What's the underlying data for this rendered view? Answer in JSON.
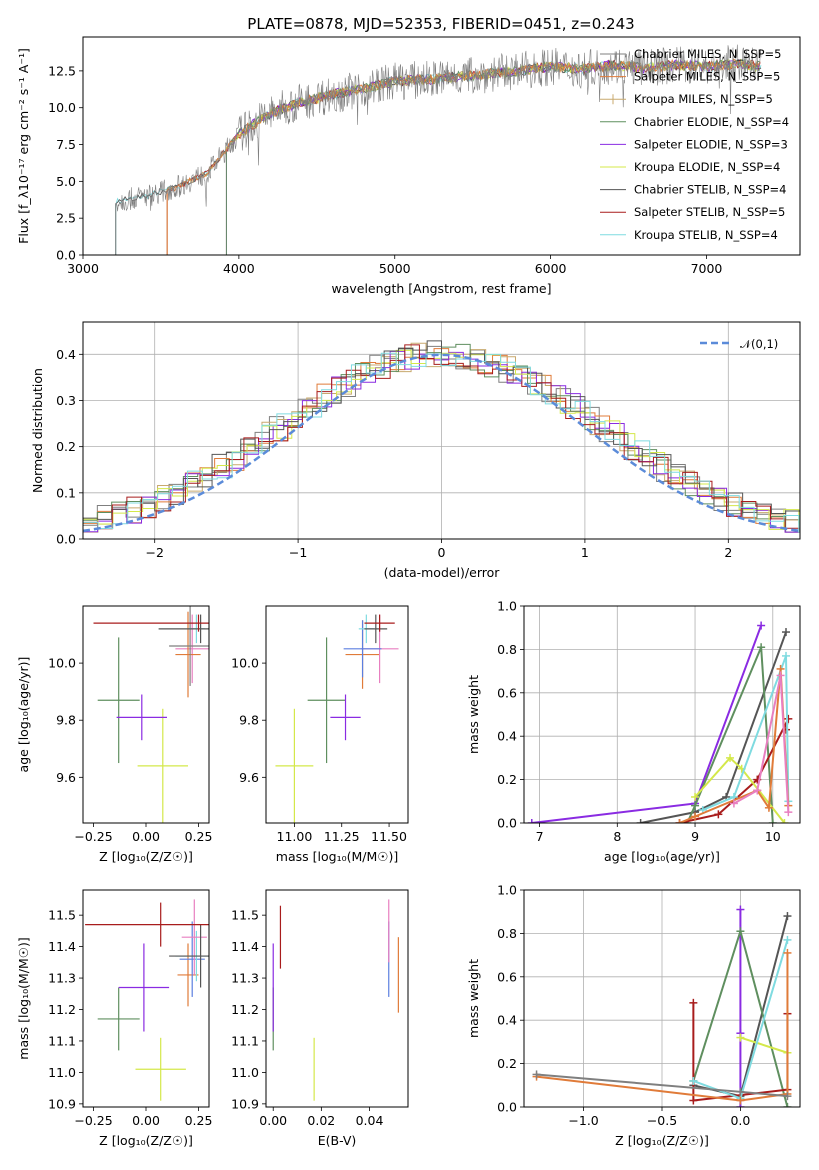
{
  "figure": {
    "title": "PLATE=0878, MJD=52353, FIBERID=0451, z=0.243"
  },
  "colors": {
    "chabrier_miles": "#7f7f7f",
    "salpeter_miles": "#e07b39",
    "kroupa_miles": "#c8a96e",
    "chabrier_elodie": "#5f8f5f",
    "salpeter_elodie": "#8a2be2",
    "kroupa_elodie": "#d4e84a",
    "chabrier_stelib": "#555555",
    "salpeter_stelib": "#a81c1c",
    "kroupa_stelib": "#7fdbe0",
    "gauss": "#5b8bd9",
    "pink": "#e87fc0",
    "blue": "#5b7fe0"
  },
  "chart_data": [
    {
      "id": "spectrum",
      "type": "line",
      "xlabel": "wavelength [Angstrom, rest frame]",
      "ylabel": "Flux [f_λ10⁻¹⁷ erg cm⁻² s⁻¹ A⁻¹]",
      "xlim": [
        3000,
        7600
      ],
      "ylim": [
        0,
        14.8
      ],
      "xticks": [
        "3000",
        "4000",
        "5000",
        "6000",
        "7000"
      ],
      "yticks": [
        "0.0",
        "2.5",
        "5.0",
        "7.5",
        "10.0",
        "12.5"
      ],
      "legend_position": "right",
      "legend": [
        "Chabrier MILES, N_SSP=5",
        "Salpeter MILES, N_SSP=5",
        "Kroupa MILES, N_SSP=5",
        "Chabrier ELODIE, N_SSP=4",
        "Salpeter ELODIE, N_SSP=3",
        "Kroupa ELODIE, N_SSP=4",
        "Chabrier STELIB, N_SSP=4",
        "Salpeter STELIB, N_SSP=5",
        "Kroupa STELIB, N_SSP=4"
      ],
      "data_envelope": {
        "x": [
          3200,
          3400,
          3600,
          3800,
          4000,
          4200,
          4400,
          4600,
          4800,
          5000,
          5200,
          5400,
          5600,
          5800,
          6000,
          6200,
          6400,
          6600,
          6800,
          7000,
          7200,
          7350
        ],
        "y": [
          3.6,
          4.0,
          4.6,
          5.6,
          8.2,
          9.6,
          10.4,
          10.9,
          11.3,
          11.8,
          11.9,
          12.1,
          12.3,
          12.5,
          12.8,
          12.6,
          12.9,
          12.7,
          12.9,
          12.8,
          13.0,
          12.8
        ]
      }
    },
    {
      "id": "residuals",
      "type": "area",
      "xlabel": "(data-model)/error",
      "ylabel": "Normed distribution",
      "xlim": [
        -2.5,
        2.5
      ],
      "ylim": [
        0,
        0.47
      ],
      "xticks": [
        "−2",
        "−1",
        "0",
        "1",
        "2"
      ],
      "yticks": [
        "0.0",
        "0.1",
        "0.2",
        "0.3",
        "0.4"
      ],
      "grid": true,
      "legend": [
        "𝒩(0,1)"
      ],
      "histogram_approx": {
        "x": [
          -2.4,
          -2.2,
          -2.0,
          -1.8,
          -1.6,
          -1.4,
          -1.2,
          -1.0,
          -0.8,
          -0.6,
          -0.4,
          -0.2,
          0.0,
          0.2,
          0.4,
          0.6,
          0.8,
          1.0,
          1.2,
          1.4,
          1.6,
          1.8,
          2.0,
          2.2,
          2.4
        ],
        "y": [
          0.03,
          0.04,
          0.06,
          0.09,
          0.11,
          0.15,
          0.19,
          0.24,
          0.29,
          0.33,
          0.37,
          0.4,
          0.41,
          0.4,
          0.37,
          0.33,
          0.29,
          0.24,
          0.19,
          0.15,
          0.11,
          0.08,
          0.06,
          0.04,
          0.03
        ]
      }
    },
    {
      "id": "age_vs_Z",
      "type": "scatter",
      "xlabel": "Z [log₁₀(Z/Z☉)]",
      "ylabel": "age  [log₁₀(age/yr)]",
      "xlim": [
        -0.3,
        0.3
      ],
      "ylim": [
        9.44,
        10.2
      ],
      "xticks": [
        "−0.25",
        "0.00",
        "0.25"
      ],
      "yticks": [
        "9.6",
        "9.8",
        "10.0"
      ],
      "points": [
        {
          "x": 0.08,
          "y": 9.64,
          "xerr": 0.12,
          "yerr": 0.2,
          "color": "kroupa_elodie"
        },
        {
          "x": -0.13,
          "y": 9.87,
          "xerr": 0.1,
          "yerr": 0.22,
          "color": "chabrier_elodie"
        },
        {
          "x": -0.02,
          "y": 9.81,
          "xerr": 0.12,
          "yerr": 0.08,
          "color": "salpeter_elodie"
        },
        {
          "x": 0.22,
          "y": 10.05,
          "xerr": 0.08,
          "yerr": 0.12,
          "color": "pink"
        },
        {
          "x": 0.2,
          "y": 10.03,
          "xerr": 0.06,
          "yerr": 0.15,
          "color": "salpeter_miles"
        },
        {
          "x": 0.21,
          "y": 10.06,
          "xerr": 0.1,
          "yerr": 0.14,
          "color": "chabrier_miles"
        },
        {
          "x": 0.24,
          "y": 10.12,
          "xerr": 0.04,
          "yerr": 0.05,
          "color": "kroupa_stelib"
        },
        {
          "x": 0.26,
          "y": 10.12,
          "xerr": 0.2,
          "yerr": 0.05,
          "color": "chabrier_stelib"
        },
        {
          "x": 0.25,
          "y": 10.14,
          "xerr": 0.5,
          "yerr": 0.03,
          "color": "salpeter_stelib"
        }
      ]
    },
    {
      "id": "age_vs_mass",
      "type": "scatter",
      "xlabel": "mass [log₁₀(M/M☉)]",
      "ylabel": "",
      "xlim": [
        10.85,
        11.6
      ],
      "ylim": [
        9.44,
        10.2
      ],
      "xticks": [
        "11.00",
        "11.25",
        "11.50"
      ],
      "yticks": [
        "9.6",
        "9.8",
        "10.0"
      ],
      "points": [
        {
          "x": 11.0,
          "y": 9.64,
          "xerr": 0.1,
          "yerr": 0.2,
          "color": "kroupa_elodie"
        },
        {
          "x": 11.17,
          "y": 9.87,
          "xerr": 0.1,
          "yerr": 0.22,
          "color": "chabrier_elodie"
        },
        {
          "x": 11.27,
          "y": 9.81,
          "xerr": 0.08,
          "yerr": 0.08,
          "color": "salpeter_elodie"
        },
        {
          "x": 11.36,
          "y": 10.03,
          "xerr": 0.09,
          "yerr": 0.12,
          "color": "salpeter_miles"
        },
        {
          "x": 11.45,
          "y": 10.05,
          "xerr": 0.1,
          "yerr": 0.12,
          "color": "pink"
        },
        {
          "x": 11.36,
          "y": 10.05,
          "xerr": 0.1,
          "yerr": 0.1,
          "color": "blue"
        },
        {
          "x": 11.38,
          "y": 10.12,
          "xerr": 0.04,
          "yerr": 0.05,
          "color": "kroupa_stelib"
        },
        {
          "x": 11.43,
          "y": 10.12,
          "xerr": 0.06,
          "yerr": 0.05,
          "color": "chabrier_stelib"
        },
        {
          "x": 11.45,
          "y": 10.14,
          "xerr": 0.08,
          "yerr": 0.03,
          "color": "salpeter_stelib"
        }
      ]
    },
    {
      "id": "weight_vs_age",
      "type": "line",
      "xlabel": "age  [log₁₀(age/yr)]",
      "ylabel": "mass weight",
      "xlim": [
        6.8,
        10.35
      ],
      "ylim": [
        0,
        1.0
      ],
      "xticks": [
        "7",
        "8",
        "9",
        "10"
      ],
      "yticks": [
        "0.0",
        "0.2",
        "0.4",
        "0.6",
        "0.8",
        "1.0"
      ],
      "grid": true,
      "series": [
        {
          "color": "salpeter_elodie",
          "x": [
            6.9,
            9.0,
            9.85
          ],
          "y": [
            0.0,
            0.09,
            0.91
          ]
        },
        {
          "color": "chabrier_stelib",
          "x": [
            8.3,
            9.0,
            9.4,
            10.17
          ],
          "y": [
            0.0,
            0.05,
            0.12,
            0.88
          ]
        },
        {
          "color": "chabrier_elodie",
          "x": [
            8.9,
            9.0,
            9.85,
            10.0
          ],
          "y": [
            0.0,
            0.08,
            0.81,
            0.0
          ]
        },
        {
          "color": "salpeter_stelib",
          "x": [
            8.8,
            9.3,
            9.8,
            10.2,
            10.17
          ],
          "y": [
            0.0,
            0.04,
            0.2,
            0.48,
            0.43
          ]
        },
        {
          "color": "kroupa_elodie",
          "x": [
            9.0,
            9.45,
            9.6,
            10.15
          ],
          "y": [
            0.12,
            0.3,
            0.25,
            0.0
          ]
        },
        {
          "color": "kroupa_stelib",
          "x": [
            9.1,
            9.5,
            10.17,
            10.2
          ],
          "y": [
            0.06,
            0.12,
            0.77,
            0.1
          ]
        },
        {
          "color": "salpeter_miles",
          "x": [
            8.8,
            9.0,
            9.8,
            9.95,
            10.1,
            10.2
          ],
          "y": [
            0.0,
            0.03,
            0.15,
            0.07,
            0.71,
            0.08
          ]
        },
        {
          "color": "pink",
          "x": [
            9.5,
            9.8,
            10.1,
            10.2
          ],
          "y": [
            0.09,
            0.15,
            0.68,
            0.05
          ]
        }
      ]
    },
    {
      "id": "mass_vs_Z",
      "type": "scatter",
      "xlabel": "Z [log₁₀(Z/Z☉)]",
      "ylabel": "mass [log₁₀(M/M☉)]",
      "xlim": [
        -0.3,
        0.3
      ],
      "ylim": [
        10.89,
        11.58
      ],
      "xticks": [
        "−0.25",
        "0.00",
        "0.25"
      ],
      "yticks": [
        "10.9",
        "11.0",
        "11.1",
        "11.2",
        "11.3",
        "11.4",
        "11.5"
      ],
      "points": [
        {
          "x": 0.07,
          "y": 11.01,
          "xerr": 0.12,
          "yerr": 0.1,
          "color": "kroupa_elodie"
        },
        {
          "x": -0.13,
          "y": 11.17,
          "xerr": 0.1,
          "yerr": 0.1,
          "color": "chabrier_elodie"
        },
        {
          "x": -0.01,
          "y": 11.27,
          "xerr": 0.12,
          "yerr": 0.14,
          "color": "salpeter_elodie"
        },
        {
          "x": 0.2,
          "y": 11.31,
          "xerr": 0.05,
          "yerr": 0.1,
          "color": "salpeter_miles"
        },
        {
          "x": 0.22,
          "y": 11.36,
          "xerr": 0.06,
          "yerr": 0.12,
          "color": "blue"
        },
        {
          "x": 0.24,
          "y": 11.37,
          "xerr": 0.1,
          "yerr": 0.08,
          "color": "kroupa_stelib"
        },
        {
          "x": 0.23,
          "y": 11.43,
          "xerr": 0.06,
          "yerr": 0.12,
          "color": "pink"
        },
        {
          "x": 0.26,
          "y": 11.37,
          "xerr": 0.15,
          "yerr": 0.1,
          "color": "chabrier_stelib"
        },
        {
          "x": 0.07,
          "y": 11.47,
          "xerr": 0.36,
          "yerr": 0.07,
          "color": "salpeter_stelib"
        }
      ]
    },
    {
      "id": "mass_vs_ebv",
      "type": "scatter",
      "xlabel": "E(B-V)",
      "ylabel": "",
      "xlim": [
        -0.003,
        0.056
      ],
      "ylim": [
        10.89,
        11.58
      ],
      "xticks": [
        "0.00",
        "0.02",
        "0.04"
      ],
      "yticks": [
        "10.9",
        "11.0",
        "11.1",
        "11.2",
        "11.3",
        "11.4",
        "11.5"
      ],
      "points": [
        {
          "x": 0.017,
          "y": 11.01,
          "xerr": 0,
          "yerr": 0.1,
          "color": "kroupa_elodie"
        },
        {
          "x": 0.0,
          "y": 11.17,
          "xerr": 0,
          "yerr": 0.1,
          "color": "chabrier_elodie"
        },
        {
          "x": 0.0,
          "y": 11.27,
          "xerr": 0,
          "yerr": 0.14,
          "color": "salpeter_elodie"
        },
        {
          "x": 0.003,
          "y": 11.43,
          "xerr": 0,
          "yerr": 0.1,
          "color": "salpeter_stelib"
        },
        {
          "x": 0.048,
          "y": 11.36,
          "xerr": 0,
          "yerr": 0.12,
          "color": "blue"
        },
        {
          "x": 0.048,
          "y": 11.45,
          "xerr": 0,
          "yerr": 0.1,
          "color": "pink"
        },
        {
          "x": 0.052,
          "y": 11.31,
          "xerr": 0,
          "yerr": 0.12,
          "color": "salpeter_miles"
        }
      ]
    },
    {
      "id": "weight_vs_Z",
      "type": "line",
      "xlabel": "Z [log₁₀(Z/Z☉)]",
      "ylabel": "mass weight",
      "xlim": [
        -1.38,
        0.38
      ],
      "ylim": [
        0,
        1.0
      ],
      "xticks": [
        "−1.0",
        "−0.5",
        "0.0"
      ],
      "yticks": [
        "0.0",
        "0.2",
        "0.4",
        "0.6",
        "0.8",
        "1.0"
      ],
      "grid": true,
      "series": [
        {
          "color": "salpeter_elodie",
          "x": [
            0.0,
            0.0,
            0.0
          ],
          "y": [
            0.91,
            0.34,
            0.0
          ]
        },
        {
          "color": "chabrier_stelib",
          "x": [
            -0.3,
            0.0,
            0.3
          ],
          "y": [
            0.1,
            0.05,
            0.88
          ]
        },
        {
          "color": "chabrier_elodie",
          "x": [
            -0.3,
            0.0,
            0.3
          ],
          "y": [
            0.12,
            0.81,
            0.0
          ]
        },
        {
          "color": "salpeter_stelib",
          "x": [
            -0.3,
            -0.3,
            0.3,
            0.3
          ],
          "y": [
            0.48,
            0.03,
            0.08,
            0.43
          ]
        },
        {
          "color": "kroupa_elodie",
          "x": [
            0.0,
            0.3
          ],
          "y": [
            0.32,
            0.25
          ]
        },
        {
          "color": "kroupa_stelib",
          "x": [
            -0.3,
            0.0,
            0.3
          ],
          "y": [
            0.12,
            0.04,
            0.77
          ]
        },
        {
          "color": "salpeter_miles",
          "x": [
            -1.3,
            0.0,
            0.3,
            0.3
          ],
          "y": [
            0.14,
            0.03,
            0.06,
            0.71
          ]
        },
        {
          "color": "chabrier_miles",
          "x": [
            -1.3,
            0.0,
            0.3
          ],
          "y": [
            0.15,
            0.07,
            0.05
          ]
        }
      ]
    }
  ]
}
